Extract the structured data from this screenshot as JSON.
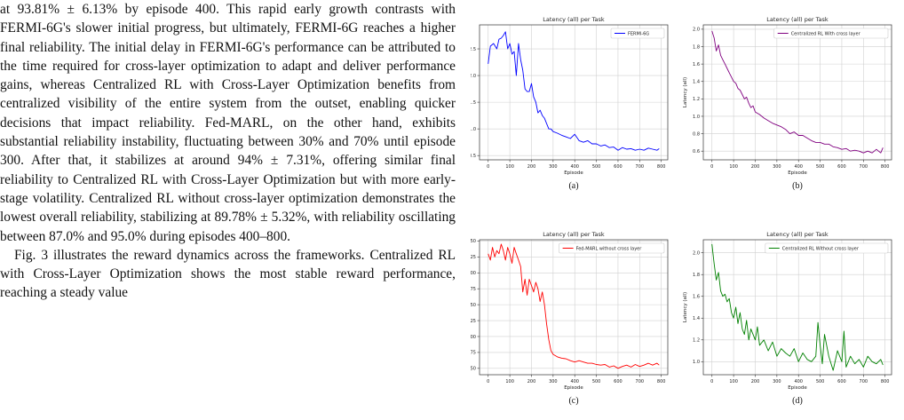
{
  "text": {
    "paragraphs": [
      "at 93.81% ± 6.13% by episode 400. This rapid early growth contrasts with FERMI-6G's slower initial progress, but ultimately, FERMI-6G reaches a higher final reliability. The initial delay in FERMI-6G's performance can be attributed to the time required for cross-layer optimization to adapt and deliver performance gains, whereas Centralized RL with Cross-Layer Optimization benefits from centralized visibility of the entire system from the outset, enabling quicker decisions that impact reliability. Fed-MARL, on the other hand, exhibits substantial reliability instability, fluctuating between 30% and 70% until episode 300. After that, it stabilizes at around 94% ± 7.31%, offering similar final reliability to Centralized RL with Cross-Layer Optimization but with more early-stage volatility. Centralized RL without cross-layer optimization demonstrates the lowest overall reliability, stabilizing at 89.78% ± 5.32%, with reliability oscillating between 87.0% and 95.0% during episodes 400–800.",
      "Fig. 3 illustrates the reward dynamics across the frameworks. Centralized RL with Cross-Layer Optimization shows the most stable reward performance, reaching a steady value"
    ]
  },
  "chart_data": [
    {
      "type": "line",
      "title": "Latency (all) per Task",
      "xlabel": "Episode",
      "ylabel": "Latency (all)",
      "caption": "(a)",
      "color": "#0000ff",
      "series": [
        {
          "name": "FERMI-6G",
          "x": [
            0,
            10,
            25,
            40,
            50,
            60,
            70,
            80,
            90,
            100,
            110,
            120,
            130,
            140,
            150,
            160,
            170,
            180,
            190,
            200,
            210,
            220,
            230,
            240,
            250,
            260,
            270,
            280,
            290,
            300,
            320,
            340,
            360,
            380,
            400,
            420,
            440,
            460,
            480,
            500,
            520,
            540,
            560,
            580,
            600,
            620,
            640,
            660,
            680,
            700,
            720,
            740,
            760,
            780,
            790
          ],
          "y": [
            2.22,
            2.55,
            2.6,
            2.5,
            2.68,
            2.7,
            2.75,
            2.82,
            2.5,
            2.6,
            2.4,
            2.45,
            2.0,
            2.6,
            2.3,
            2.1,
            1.75,
            1.7,
            1.7,
            1.85,
            1.6,
            1.5,
            1.3,
            1.35,
            1.25,
            1.2,
            1.1,
            1.0,
            1.0,
            0.95,
            0.92,
            0.88,
            0.85,
            0.82,
            0.9,
            0.78,
            0.75,
            0.78,
            0.72,
            0.72,
            0.68,
            0.7,
            0.65,
            0.66,
            0.6,
            0.65,
            0.62,
            0.63,
            0.6,
            0.62,
            0.6,
            0.64,
            0.62,
            0.6,
            0.63
          ]
        }
      ],
      "xlim": [
        -40,
        830
      ],
      "ylim": [
        0.42,
        2.95
      ],
      "xticks": [
        0,
        100,
        200,
        300,
        400,
        500,
        600,
        700,
        800
      ],
      "yticks": [
        0.5,
        1.0,
        1.5,
        2.0,
        2.5
      ],
      "ytick_labels": [
        "0.5",
        "1.0",
        "1.5",
        "2.0",
        "2.5"
      ],
      "grid": true,
      "legend": "top-right"
    },
    {
      "type": "line",
      "title": "Latency (all) per Task",
      "xlabel": "Episode",
      "ylabel": "Latency (all)",
      "caption": "(b)",
      "color": "#800080",
      "series": [
        {
          "name": "Centralized RL With cross layer",
          "x": [
            0,
            10,
            20,
            30,
            40,
            50,
            60,
            70,
            80,
            90,
            100,
            110,
            120,
            130,
            140,
            150,
            160,
            170,
            180,
            190,
            200,
            220,
            240,
            260,
            280,
            300,
            320,
            340,
            360,
            380,
            400,
            420,
            440,
            460,
            480,
            500,
            520,
            540,
            560,
            580,
            600,
            620,
            640,
            660,
            680,
            700,
            720,
            740,
            760,
            780,
            790
          ],
          "y": [
            1.98,
            1.9,
            1.75,
            1.82,
            1.7,
            1.65,
            1.6,
            1.55,
            1.5,
            1.45,
            1.4,
            1.38,
            1.32,
            1.3,
            1.25,
            1.2,
            1.22,
            1.15,
            1.1,
            1.12,
            1.05,
            1.02,
            0.98,
            0.95,
            0.92,
            0.9,
            0.88,
            0.85,
            0.8,
            0.82,
            0.78,
            0.78,
            0.75,
            0.72,
            0.7,
            0.7,
            0.68,
            0.68,
            0.65,
            0.64,
            0.62,
            0.63,
            0.6,
            0.61,
            0.6,
            0.58,
            0.6,
            0.58,
            0.62,
            0.58,
            0.64
          ]
        }
      ],
      "xlim": [
        -40,
        830
      ],
      "ylim": [
        0.5,
        2.05
      ],
      "xticks": [
        0,
        100,
        200,
        300,
        400,
        500,
        600,
        700,
        800
      ],
      "yticks": [
        0.6,
        0.8,
        1.0,
        1.2,
        1.4,
        1.6,
        1.8,
        2.0
      ],
      "ytick_labels": [
        "0.6",
        "0.8",
        "1.0",
        "1.2",
        "1.4",
        "1.6",
        "1.8",
        "2.0"
      ],
      "grid": true,
      "legend": "top-right"
    },
    {
      "type": "line",
      "title": "Latency (all) per Task",
      "xlabel": "Episode",
      "ylabel": "Latency (all)",
      "caption": "(c)",
      "color": "#ff0000",
      "series": [
        {
          "name": "Fed-MARL without cross layer",
          "x": [
            0,
            10,
            20,
            30,
            40,
            50,
            60,
            70,
            80,
            90,
            100,
            110,
            120,
            130,
            140,
            150,
            160,
            170,
            180,
            190,
            200,
            210,
            220,
            230,
            240,
            250,
            260,
            270,
            280,
            290,
            300,
            310,
            320,
            340,
            360,
            380,
            400,
            420,
            440,
            460,
            480,
            500,
            520,
            540,
            560,
            580,
            600,
            620,
            640,
            660,
            680,
            700,
            720,
            740,
            760,
            780,
            790
          ],
          "y": [
            2.3,
            2.2,
            2.4,
            2.25,
            2.35,
            2.3,
            2.45,
            2.35,
            2.2,
            2.4,
            2.3,
            2.15,
            2.4,
            2.3,
            2.2,
            2.1,
            1.7,
            1.9,
            1.65,
            1.9,
            1.8,
            1.7,
            1.85,
            1.75,
            1.55,
            1.7,
            1.5,
            1.2,
            0.95,
            0.78,
            0.72,
            0.7,
            0.68,
            0.66,
            0.65,
            0.62,
            0.6,
            0.62,
            0.6,
            0.58,
            0.58,
            0.56,
            0.55,
            0.56,
            0.52,
            0.54,
            0.5,
            0.53,
            0.55,
            0.52,
            0.56,
            0.53,
            0.55,
            0.58,
            0.55,
            0.58,
            0.55
          ]
        }
      ],
      "xlim": [
        -40,
        830
      ],
      "ylim": [
        0.4,
        2.52
      ],
      "xticks": [
        0,
        100,
        200,
        300,
        400,
        500,
        600,
        700,
        800
      ],
      "yticks": [
        0.5,
        0.75,
        1.0,
        1.25,
        1.5,
        1.75,
        2.0,
        2.25,
        2.5
      ],
      "ytick_labels": [
        "0.50",
        "0.75",
        "1.00",
        "1.25",
        "1.50",
        "1.75",
        "2.00",
        "2.25",
        "2.50"
      ],
      "grid": true,
      "legend": "top-right"
    },
    {
      "type": "line",
      "title": "Latency (all) per Task",
      "xlabel": "Episode",
      "ylabel": "Latency (all)",
      "caption": "(d)",
      "color": "#008000",
      "series": [
        {
          "name": "Centralized RL Without cross layer",
          "x": [
            0,
            10,
            20,
            30,
            40,
            50,
            60,
            70,
            80,
            90,
            100,
            110,
            120,
            130,
            140,
            150,
            160,
            170,
            180,
            190,
            200,
            210,
            220,
            240,
            260,
            280,
            300,
            320,
            340,
            360,
            380,
            400,
            420,
            440,
            460,
            480,
            490,
            500,
            510,
            520,
            540,
            560,
            580,
            600,
            610,
            620,
            640,
            660,
            680,
            700,
            720,
            740,
            760,
            780,
            790
          ],
          "y": [
            2.08,
            1.9,
            1.75,
            1.82,
            1.65,
            1.6,
            1.62,
            1.55,
            1.58,
            1.45,
            1.4,
            1.5,
            1.35,
            1.45,
            1.3,
            1.25,
            1.38,
            1.2,
            1.3,
            1.25,
            1.2,
            1.32,
            1.15,
            1.2,
            1.1,
            1.18,
            1.05,
            1.12,
            1.08,
            1.05,
            1.12,
            1.0,
            1.08,
            1.02,
            1.0,
            1.05,
            1.36,
            1.15,
            0.98,
            1.25,
            1.05,
            0.92,
            1.1,
            1.0,
            1.28,
            0.95,
            1.05,
            0.98,
            1.02,
            0.95,
            1.05,
            1.0,
            0.98,
            1.02,
            0.97
          ]
        }
      ],
      "xlim": [
        -40,
        830
      ],
      "ylim": [
        0.88,
        2.12
      ],
      "xticks": [
        0,
        100,
        200,
        300,
        400,
        500,
        600,
        700,
        800
      ],
      "yticks": [
        1.0,
        1.2,
        1.4,
        1.6,
        1.8,
        2.0
      ],
      "ytick_labels": [
        "1.0",
        "1.2",
        "1.4",
        "1.6",
        "1.8",
        "2.0"
      ],
      "grid": true,
      "legend": "top-right"
    }
  ]
}
